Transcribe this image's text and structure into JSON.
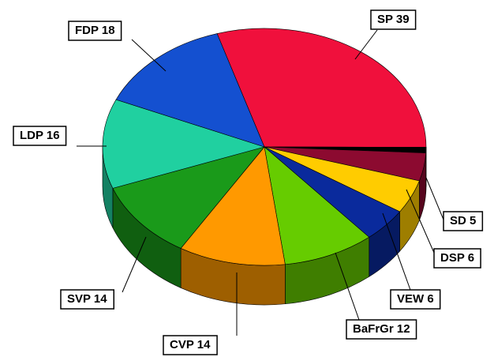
{
  "chart_data": {
    "type": "pie3d",
    "categories": [
      "SP",
      null,
      "SD",
      "DSP",
      "VEW",
      "BaFrGr",
      "CVP",
      "SVP",
      "LDP",
      "FDP"
    ],
    "values": [
      39,
      1,
      5,
      6,
      6,
      12,
      14,
      14,
      16,
      18
    ],
    "colors": [
      "#f0103c",
      "#000000",
      "#8c0a30",
      "#ffcc00",
      "#0a2a9c",
      "#66cc00",
      "#ff9900",
      "#1a9a1a",
      "#20d0a0",
      "#1450d0"
    ]
  }
}
